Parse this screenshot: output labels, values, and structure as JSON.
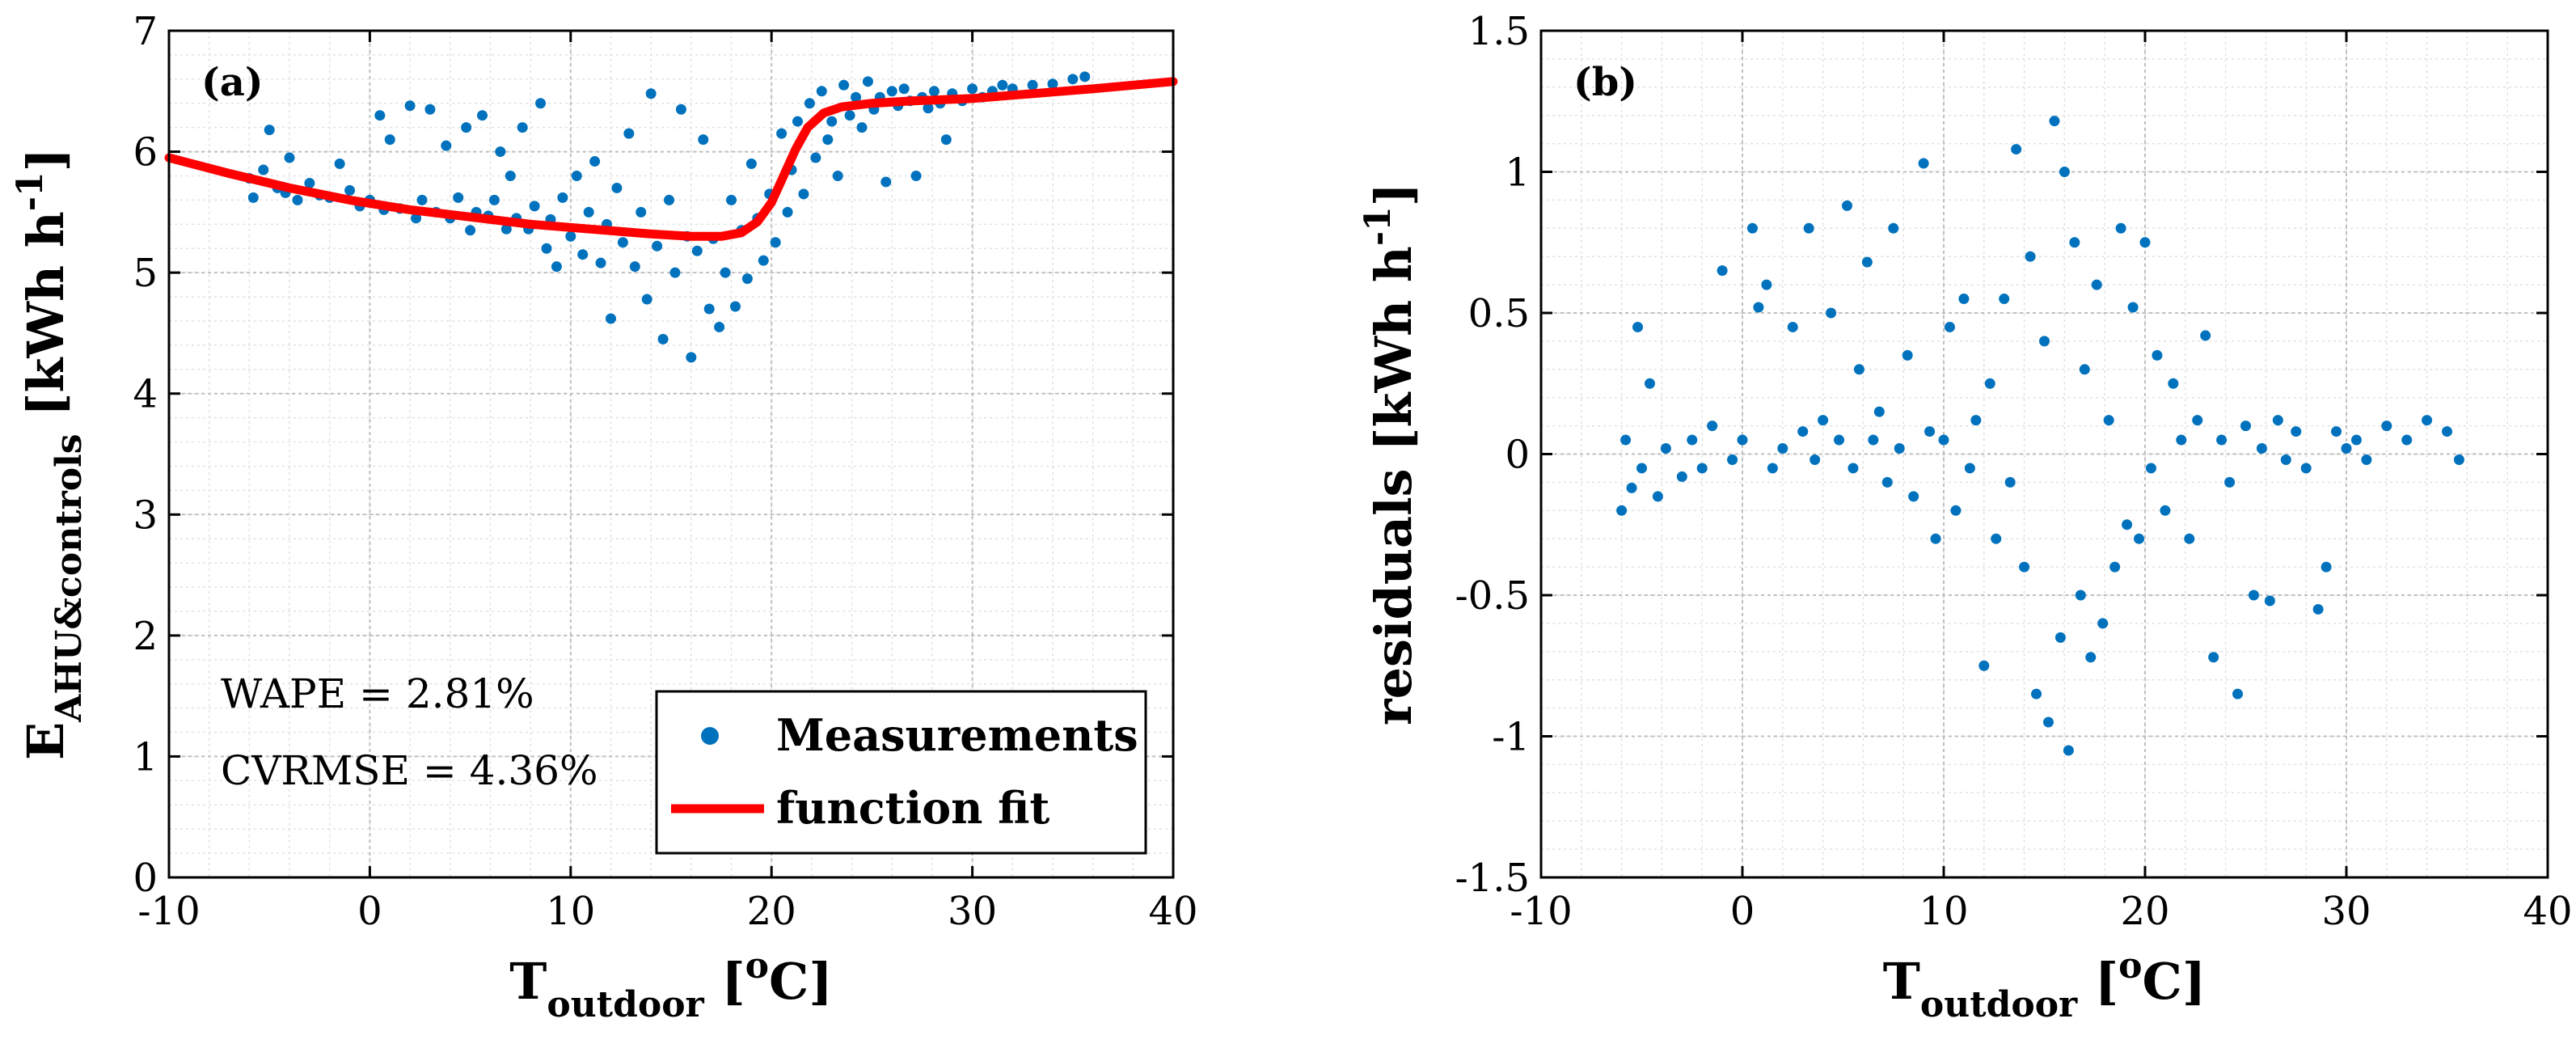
{
  "colors": {
    "points": "#0072BD",
    "fit": "#FF0000",
    "grid": "#BFBFBF",
    "minor_grid": "#E2E2E2",
    "axis": "#000000"
  },
  "chart_data": [
    {
      "type": "scatter",
      "panel_label": "(a)",
      "xlabel": {
        "main": "T",
        "sub": "outdoor",
        "unit": " [",
        "sup": "o",
        "unit_end": "C]"
      },
      "ylabel": {
        "main": "E",
        "sub": "AHU&controls",
        "unit": " [kWh h",
        "sup": "-1",
        "unit_end": "]"
      },
      "xlim": [
        -10,
        40
      ],
      "ylim": [
        0,
        7
      ],
      "xticks": [
        -10,
        0,
        10,
        20,
        30,
        40
      ],
      "yticks": [
        0,
        1,
        2,
        3,
        4,
        5,
        6,
        7
      ],
      "xtick_labels": [
        "-10",
        "0",
        "10",
        "20",
        "30",
        "40"
      ],
      "ytick_labels": [
        "0",
        "1",
        "2",
        "3",
        "4",
        "5",
        "6",
        "7"
      ],
      "stats": [
        "WAPE = 2.81%",
        "CVRMSE = 4.36%"
      ],
      "legend": {
        "position": "bottom-right",
        "entries": [
          {
            "label": "Measurements",
            "marker": "dot"
          },
          {
            "label": "function fit",
            "marker": "line"
          }
        ]
      },
      "series": [
        {
          "name": "Measurements",
          "kind": "scatter",
          "points": [
            [
              -6,
              5.78
            ],
            [
              -5.8,
              5.62
            ],
            [
              -5.3,
              5.85
            ],
            [
              -5,
              6.18
            ],
            [
              -4.6,
              5.7
            ],
            [
              -4.2,
              5.66
            ],
            [
              -4,
              5.95
            ],
            [
              -3.6,
              5.6
            ],
            [
              -3,
              5.74
            ],
            [
              -2.5,
              5.64
            ],
            [
              -2,
              5.62
            ],
            [
              -1.5,
              5.9
            ],
            [
              -1,
              5.68
            ],
            [
              -0.5,
              5.55
            ],
            [
              0,
              5.6
            ],
            [
              0.5,
              6.3
            ],
            [
              0.7,
              5.52
            ],
            [
              1,
              6.1
            ],
            [
              1.5,
              5.53
            ],
            [
              2,
              6.38
            ],
            [
              2.3,
              5.45
            ],
            [
              2.6,
              5.6
            ],
            [
              3,
              6.35
            ],
            [
              3.3,
              5.5
            ],
            [
              3.8,
              6.05
            ],
            [
              4,
              5.45
            ],
            [
              4.4,
              5.62
            ],
            [
              4.8,
              6.2
            ],
            [
              5,
              5.35
            ],
            [
              5.3,
              5.5
            ],
            [
              5.6,
              6.3
            ],
            [
              5.9,
              5.47
            ],
            [
              6.2,
              5.6
            ],
            [
              6.5,
              6.0
            ],
            [
              6.8,
              5.36
            ],
            [
              7,
              5.8
            ],
            [
              7.3,
              5.45
            ],
            [
              7.6,
              6.2
            ],
            [
              7.9,
              5.36
            ],
            [
              8.2,
              5.55
            ],
            [
              8.5,
              6.4
            ],
            [
              8.8,
              5.2
            ],
            [
              9,
              5.44
            ],
            [
              9.3,
              5.05
            ],
            [
              9.6,
              5.62
            ],
            [
              10,
              5.3
            ],
            [
              10.3,
              5.8
            ],
            [
              10.6,
              5.15
            ],
            [
              10.9,
              5.5
            ],
            [
              11.2,
              5.92
            ],
            [
              11.5,
              5.08
            ],
            [
              11.8,
              5.4
            ],
            [
              12,
              4.62
            ],
            [
              12.3,
              5.7
            ],
            [
              12.6,
              5.25
            ],
            [
              12.9,
              6.15
            ],
            [
              13.2,
              5.05
            ],
            [
              13.5,
              5.5
            ],
            [
              13.8,
              4.78
            ],
            [
              14,
              6.48
            ],
            [
              14.3,
              5.22
            ],
            [
              14.6,
              4.45
            ],
            [
              14.9,
              5.6
            ],
            [
              15.2,
              5.0
            ],
            [
              15.5,
              6.35
            ],
            [
              15.8,
              5.3
            ],
            [
              16,
              4.3
            ],
            [
              16.3,
              5.18
            ],
            [
              16.6,
              6.1
            ],
            [
              16.9,
              4.7
            ],
            [
              17.1,
              5.28
            ],
            [
              17.4,
              4.55
            ],
            [
              17.7,
              5.0
            ],
            [
              18,
              5.6
            ],
            [
              18.2,
              4.72
            ],
            [
              18.5,
              5.35
            ],
            [
              18.8,
              4.95
            ],
            [
              19,
              5.9
            ],
            [
              19.3,
              5.45
            ],
            [
              19.6,
              5.1
            ],
            [
              19.9,
              5.65
            ],
            [
              20.2,
              5.25
            ],
            [
              20.5,
              6.15
            ],
            [
              20.8,
              5.5
            ],
            [
              21,
              5.85
            ],
            [
              21.3,
              6.25
            ],
            [
              21.6,
              5.65
            ],
            [
              21.9,
              6.4
            ],
            [
              22.2,
              5.95
            ],
            [
              22.5,
              6.5
            ],
            [
              22.8,
              6.1
            ],
            [
              23,
              6.25
            ],
            [
              23.3,
              5.8
            ],
            [
              23.6,
              6.55
            ],
            [
              23.9,
              6.3
            ],
            [
              24.2,
              6.45
            ],
            [
              24.5,
              6.2
            ],
            [
              24.8,
              6.58
            ],
            [
              25.1,
              6.35
            ],
            [
              25.4,
              6.45
            ],
            [
              25.7,
              5.75
            ],
            [
              26,
              6.5
            ],
            [
              26.3,
              6.38
            ],
            [
              26.6,
              6.52
            ],
            [
              26.9,
              6.42
            ],
            [
              27.2,
              5.8
            ],
            [
              27.5,
              6.45
            ],
            [
              27.8,
              6.36
            ],
            [
              28.1,
              6.5
            ],
            [
              28.4,
              6.4
            ],
            [
              28.7,
              6.1
            ],
            [
              29,
              6.48
            ],
            [
              29.5,
              6.42
            ],
            [
              30,
              6.52
            ],
            [
              30.5,
              6.45
            ],
            [
              31,
              6.5
            ],
            [
              31.5,
              6.55
            ],
            [
              32,
              6.52
            ],
            [
              33,
              6.55
            ],
            [
              34,
              6.56
            ],
            [
              35,
              6.6
            ],
            [
              35.6,
              6.62
            ]
          ]
        },
        {
          "name": "function fit",
          "kind": "line",
          "points": [
            [
              -10,
              5.95
            ],
            [
              -7,
              5.82
            ],
            [
              -4,
              5.7
            ],
            [
              -1,
              5.6
            ],
            [
              2,
              5.52
            ],
            [
              5,
              5.46
            ],
            [
              8,
              5.4
            ],
            [
              11,
              5.36
            ],
            [
              14,
              5.32
            ],
            [
              16,
              5.3
            ],
            [
              17.5,
              5.3
            ],
            [
              18.5,
              5.33
            ],
            [
              19.3,
              5.42
            ],
            [
              20,
              5.58
            ],
            [
              20.6,
              5.8
            ],
            [
              21.2,
              6.02
            ],
            [
              21.8,
              6.2
            ],
            [
              22.6,
              6.32
            ],
            [
              23.5,
              6.37
            ],
            [
              25,
              6.4
            ],
            [
              27,
              6.42
            ],
            [
              30,
              6.44
            ],
            [
              33,
              6.48
            ],
            [
              36,
              6.52
            ],
            [
              38,
              6.55
            ],
            [
              40,
              6.58
            ]
          ]
        }
      ]
    },
    {
      "type": "scatter",
      "panel_label": "(b)",
      "xlabel": {
        "main": "T",
        "sub": "outdoor",
        "unit": " [",
        "sup": "o",
        "unit_end": "C]"
      },
      "ylabel": {
        "main": "residuals",
        "sub": "",
        "unit": " [kWh h",
        "sup": "-1",
        "unit_end": "]"
      },
      "xlim": [
        -10,
        40
      ],
      "ylim": [
        -1.5,
        1.5
      ],
      "xticks": [
        -10,
        0,
        10,
        20,
        30,
        40
      ],
      "yticks": [
        -1.5,
        -1,
        -0.5,
        0,
        0.5,
        1,
        1.5
      ],
      "xtick_labels": [
        "-10",
        "0",
        "10",
        "20",
        "30",
        "40"
      ],
      "ytick_labels": [
        "-1.5",
        "-1",
        "-0.5",
        "0",
        "0.5",
        "1",
        "1.5"
      ],
      "series": [
        {
          "name": "residuals",
          "kind": "scatter",
          "points": [
            [
              -6,
              -0.2
            ],
            [
              -5.8,
              0.05
            ],
            [
              -5.5,
              -0.12
            ],
            [
              -5.2,
              0.45
            ],
            [
              -5,
              -0.05
            ],
            [
              -4.6,
              0.25
            ],
            [
              -4.2,
              -0.15
            ],
            [
              -3.8,
              0.02
            ],
            [
              -3,
              -0.08
            ],
            [
              -2.5,
              0.05
            ],
            [
              -2,
              -0.05
            ],
            [
              -1.5,
              0.1
            ],
            [
              -1,
              0.65
            ],
            [
              -0.5,
              -0.02
            ],
            [
              0,
              0.05
            ],
            [
              0.5,
              0.8
            ],
            [
              0.8,
              0.52
            ],
            [
              1.2,
              0.6
            ],
            [
              1.5,
              -0.05
            ],
            [
              2,
              0.02
            ],
            [
              2.5,
              0.45
            ],
            [
              3,
              0.08
            ],
            [
              3.3,
              0.8
            ],
            [
              3.6,
              -0.02
            ],
            [
              4,
              0.12
            ],
            [
              4.4,
              0.5
            ],
            [
              4.8,
              0.05
            ],
            [
              5.2,
              0.88
            ],
            [
              5.5,
              -0.05
            ],
            [
              5.8,
              0.3
            ],
            [
              6.2,
              0.68
            ],
            [
              6.5,
              0.05
            ],
            [
              6.8,
              0.15
            ],
            [
              7.2,
              -0.1
            ],
            [
              7.5,
              0.8
            ],
            [
              7.8,
              0.02
            ],
            [
              8.2,
              0.35
            ],
            [
              8.5,
              -0.15
            ],
            [
              9,
              1.03
            ],
            [
              9.3,
              0.08
            ],
            [
              9.6,
              -0.3
            ],
            [
              10,
              0.05
            ],
            [
              10.3,
              0.45
            ],
            [
              10.6,
              -0.2
            ],
            [
              11,
              0.55
            ],
            [
              11.3,
              -0.05
            ],
            [
              11.6,
              0.12
            ],
            [
              12,
              -0.75
            ],
            [
              12.3,
              0.25
            ],
            [
              12.6,
              -0.3
            ],
            [
              13,
              0.55
            ],
            [
              13.3,
              -0.1
            ],
            [
              13.6,
              1.08
            ],
            [
              14,
              -0.4
            ],
            [
              14.3,
              0.7
            ],
            [
              14.6,
              -0.85
            ],
            [
              15,
              0.4
            ],
            [
              15.2,
              -0.95
            ],
            [
              15.5,
              1.18
            ],
            [
              15.8,
              -0.65
            ],
            [
              16,
              1.0
            ],
            [
              16.2,
              -1.05
            ],
            [
              16.5,
              0.75
            ],
            [
              16.8,
              -0.5
            ],
            [
              17,
              0.3
            ],
            [
              17.3,
              -0.72
            ],
            [
              17.6,
              0.6
            ],
            [
              17.9,
              -0.6
            ],
            [
              18.2,
              0.12
            ],
            [
              18.5,
              -0.4
            ],
            [
              18.8,
              0.8
            ],
            [
              19.1,
              -0.25
            ],
            [
              19.4,
              0.52
            ],
            [
              19.7,
              -0.3
            ],
            [
              20,
              0.75
            ],
            [
              20.3,
              -0.05
            ],
            [
              20.6,
              0.35
            ],
            [
              21,
              -0.2
            ],
            [
              21.4,
              0.25
            ],
            [
              21.8,
              0.05
            ],
            [
              22.2,
              -0.3
            ],
            [
              22.6,
              0.12
            ],
            [
              23,
              0.42
            ],
            [
              23.4,
              -0.72
            ],
            [
              23.8,
              0.05
            ],
            [
              24.2,
              -0.1
            ],
            [
              24.6,
              -0.85
            ],
            [
              25,
              0.1
            ],
            [
              25.4,
              -0.5
            ],
            [
              25.8,
              0.02
            ],
            [
              26.2,
              -0.52
            ],
            [
              26.6,
              0.12
            ],
            [
              27,
              -0.02
            ],
            [
              27.5,
              0.08
            ],
            [
              28,
              -0.05
            ],
            [
              28.6,
              -0.55
            ],
            [
              29,
              -0.4
            ],
            [
              29.5,
              0.08
            ],
            [
              30,
              0.02
            ],
            [
              30.5,
              0.05
            ],
            [
              31,
              -0.02
            ],
            [
              32,
              0.1
            ],
            [
              33,
              0.05
            ],
            [
              34,
              0.12
            ],
            [
              35,
              0.08
            ],
            [
              35.6,
              -0.02
            ]
          ]
        }
      ]
    }
  ]
}
